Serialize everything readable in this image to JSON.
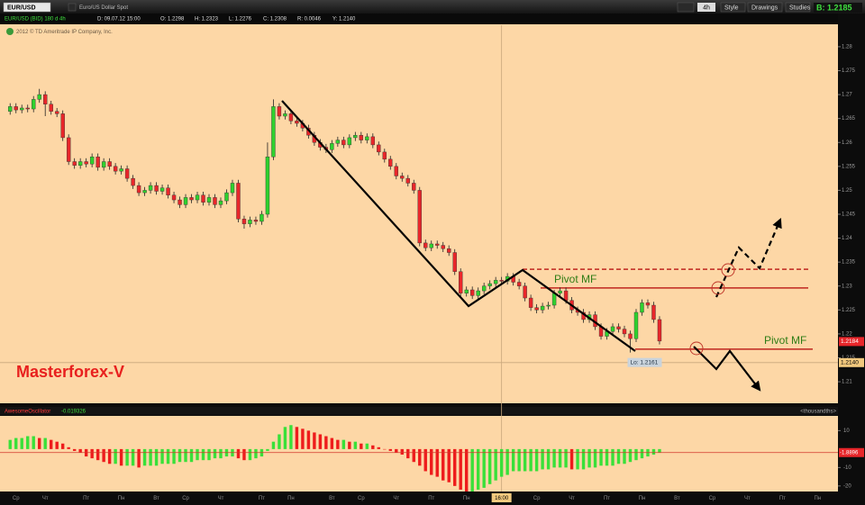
{
  "toolbar": {
    "symbol": "EUR/USD",
    "description": "Euro/US Dollar Spot",
    "aggregation": "4h",
    "buttons": [
      "Style",
      "Drawings",
      "Studies"
    ],
    "bid": "B: 1.2185"
  },
  "info_line": [
    "EUR/USD (BID) 180 d 4h",
    "D: 09.07.12 15:00",
    "O: 1.2298",
    "H: 1.2323",
    "L: 1.2276",
    "C: 1.2308",
    "R: 0.0046",
    "Y: 1.2140"
  ],
  "copyright": "2012 © TD Ameritrade IP Company, Inc.",
  "chart_data": [
    {
      "type": "candlestick",
      "annotation_text": "Masterforex-V",
      "low_label": "Lo: 1.2161",
      "up_color": "#2ed12e",
      "down_color": "#e8262a",
      "categories": [
        null,
        "Ср",
        null,
        null,
        null,
        null,
        "Чт",
        null,
        null,
        null,
        null,
        null,
        null,
        "Пт",
        null,
        null,
        null,
        null,
        null,
        "Пн",
        null,
        null,
        null,
        null,
        null,
        "Вт",
        null,
        null,
        null,
        null,
        "Ср",
        null,
        null,
        null,
        null,
        null,
        "Чт",
        null,
        null,
        null,
        null,
        null,
        null,
        "Пт",
        null,
        null,
        null,
        null,
        "Пн",
        null,
        null,
        null,
        null,
        null,
        null,
        "Вт",
        null,
        null,
        null,
        null,
        "Ср",
        null,
        null,
        null,
        null,
        null,
        "Чт",
        null,
        null,
        null,
        null,
        null,
        "Пт",
        null,
        null,
        null,
        null,
        null,
        "Пн",
        null,
        null,
        null,
        null,
        null,
        "16:00",
        null,
        null,
        null,
        null,
        null,
        "Ср",
        null,
        null,
        null,
        null,
        null,
        "Чт",
        null,
        null,
        null,
        null,
        null,
        "Пт",
        null,
        null,
        null,
        null,
        null,
        "Пн",
        null,
        null,
        null,
        null,
        null,
        "Вт",
        null,
        null,
        null,
        null,
        null,
        "Ср",
        null,
        null,
        null,
        null,
        null,
        "Чт",
        null,
        null,
        null,
        null,
        null,
        "Пт",
        null,
        null,
        null,
        null,
        null,
        "Пн",
        null,
        null,
        null
      ],
      "open": [
        1.2665,
        1.2675,
        1.2668,
        1.2672,
        1.267,
        1.269,
        1.27,
        1.268,
        1.2665,
        1.266,
        1.261,
        1.256,
        1.2552,
        1.256,
        1.2555,
        1.257,
        1.2548,
        1.256,
        1.255,
        1.254,
        1.2545,
        1.2525,
        1.251,
        1.2495,
        1.25,
        1.251,
        1.2498,
        1.2505,
        1.249,
        1.248,
        1.247,
        1.2485,
        1.248,
        1.249,
        1.2475,
        1.2485,
        1.247,
        1.2478,
        1.2495,
        1.2515,
        1.244,
        1.243,
        1.2438,
        1.2435,
        1.245,
        1.257,
        1.2675,
        1.2655,
        1.266,
        1.2645,
        1.264,
        1.263,
        1.2615,
        1.26,
        1.259,
        1.2585,
        1.2598,
        1.2605,
        1.2595,
        1.261,
        1.2615,
        1.2605,
        1.2612,
        1.2595,
        1.258,
        1.2565,
        1.255,
        1.253,
        1.2525,
        1.2515,
        1.25,
        1.239,
        1.238,
        1.2388,
        1.2385,
        1.2378,
        1.237,
        1.233,
        1.2285,
        1.2292,
        1.228,
        1.229,
        1.23,
        1.2305,
        1.2312,
        1.231,
        1.232,
        1.2308,
        1.23,
        1.2275,
        1.2255,
        1.225,
        1.2258,
        1.226,
        1.2285,
        1.229,
        1.227,
        1.225,
        1.2245,
        1.223,
        1.224,
        1.2215,
        1.2195,
        1.2205,
        1.2215,
        1.221,
        1.22,
        1.219,
        1.2245,
        1.2265,
        1.226,
        1.223,
        null,
        null,
        null,
        null,
        null,
        null,
        null,
        null,
        null,
        null,
        null,
        null,
        null,
        null,
        null,
        null,
        null,
        null,
        null,
        null,
        null,
        null,
        null,
        null,
        null,
        null,
        null,
        null,
        null,
        null
      ],
      "high": [
        1.2682,
        1.2682,
        1.2679,
        1.2679,
        1.2697,
        1.2712,
        1.2707,
        1.2687,
        1.2672,
        1.2667,
        1.2617,
        1.2567,
        1.2567,
        1.2567,
        1.2577,
        1.2577,
        1.2567,
        1.2567,
        1.2557,
        1.2552,
        1.2552,
        1.2532,
        1.2517,
        1.2507,
        1.2517,
        1.2517,
        1.2512,
        1.2512,
        1.2497,
        1.2487,
        1.2492,
        1.2492,
        1.2497,
        1.2497,
        1.2492,
        1.2492,
        1.2485,
        1.2502,
        1.2522,
        1.2522,
        1.2447,
        1.2445,
        1.2445,
        1.2457,
        1.26,
        1.269,
        1.2682,
        1.2667,
        1.2667,
        1.2652,
        1.2647,
        1.2637,
        1.2622,
        1.2607,
        1.2597,
        1.2605,
        1.2612,
        1.2612,
        1.2617,
        1.2622,
        1.2622,
        1.2619,
        1.2619,
        1.2602,
        1.2587,
        1.2572,
        1.2557,
        1.2537,
        1.2532,
        1.2522,
        1.2507,
        1.2397,
        1.2395,
        1.2395,
        1.2392,
        1.2385,
        1.2377,
        1.2337,
        1.2299,
        1.2299,
        1.2297,
        1.2307,
        1.2312,
        1.2319,
        1.2319,
        1.2327,
        1.2327,
        1.2315,
        1.2307,
        1.2282,
        1.2262,
        1.2265,
        1.2267,
        1.2292,
        1.2297,
        1.2297,
        1.2277,
        1.2257,
        1.2252,
        1.2247,
        1.2247,
        1.2222,
        1.2212,
        1.2222,
        1.2222,
        1.2217,
        1.2207,
        1.2252,
        1.2272,
        1.2272,
        1.2267,
        1.2237,
        null,
        null,
        null,
        null,
        null,
        null,
        null,
        null,
        null,
        null,
        null,
        null,
        null,
        null,
        null,
        null,
        null,
        null,
        null,
        null,
        null,
        null,
        null,
        null,
        null,
        null,
        null,
        null,
        null,
        null
      ],
      "low": [
        1.2658,
        1.2661,
        1.2661,
        1.2663,
        1.2663,
        1.2683,
        1.2655,
        1.2658,
        1.2653,
        1.2603,
        1.2553,
        1.2545,
        1.2545,
        1.2548,
        1.2548,
        1.2541,
        1.2541,
        1.2543,
        1.2533,
        1.2533,
        1.2518,
        1.2503,
        1.2488,
        1.2488,
        1.2493,
        1.2491,
        1.2491,
        1.2483,
        1.2473,
        1.2463,
        1.2463,
        1.2473,
        1.2473,
        1.2468,
        1.2468,
        1.2463,
        1.2463,
        1.2471,
        1.2488,
        1.2433,
        1.242,
        1.2423,
        1.2428,
        1.2428,
        1.2443,
        1.2563,
        1.2648,
        1.2648,
        1.2638,
        1.2633,
        1.2623,
        1.2608,
        1.2593,
        1.2583,
        1.2578,
        1.2578,
        1.2591,
        1.2588,
        1.2588,
        1.2603,
        1.2598,
        1.2598,
        1.2588,
        1.2573,
        1.2558,
        1.2543,
        1.2523,
        1.2518,
        1.2508,
        1.2493,
        1.2383,
        1.2373,
        1.2373,
        1.2378,
        1.2371,
        1.2363,
        1.2323,
        1.2278,
        1.2278,
        1.2273,
        1.2273,
        1.2283,
        1.2293,
        1.2298,
        1.2303,
        1.2303,
        1.2301,
        1.2293,
        1.2268,
        1.2248,
        1.2243,
        1.2243,
        1.2251,
        1.2253,
        1.2278,
        1.2263,
        1.2243,
        1.2238,
        1.2223,
        1.2223,
        1.2208,
        1.2188,
        1.2188,
        1.2198,
        1.2203,
        1.2193,
        1.2161,
        1.2183,
        1.2238,
        1.2253,
        1.2223,
        1.2178,
        null,
        null,
        null,
        null,
        null,
        null,
        null,
        null,
        null,
        null,
        null,
        null,
        null,
        null,
        null,
        null,
        null,
        null,
        null,
        null,
        null,
        null,
        null,
        null,
        null,
        null,
        null,
        null,
        null,
        null
      ],
      "close": [
        1.2675,
        1.2668,
        1.2672,
        1.267,
        1.269,
        1.27,
        1.268,
        1.2665,
        1.266,
        1.261,
        1.256,
        1.2552,
        1.256,
        1.2555,
        1.257,
        1.2548,
        1.256,
        1.255,
        1.254,
        1.2545,
        1.2525,
        1.251,
        1.2495,
        1.25,
        1.251,
        1.2498,
        1.2505,
        1.249,
        1.248,
        1.247,
        1.2485,
        1.248,
        1.249,
        1.2475,
        1.2485,
        1.247,
        1.2478,
        1.2495,
        1.2515,
        1.244,
        1.243,
        1.2438,
        1.2435,
        1.245,
        1.257,
        1.2675,
        1.2655,
        1.266,
        1.2645,
        1.264,
        1.263,
        1.2615,
        1.26,
        1.259,
        1.2585,
        1.2598,
        1.2605,
        1.2595,
        1.261,
        1.2615,
        1.2605,
        1.2612,
        1.2595,
        1.258,
        1.2565,
        1.255,
        1.253,
        1.2525,
        1.2515,
        1.25,
        1.239,
        1.238,
        1.2388,
        1.2385,
        1.2378,
        1.237,
        1.233,
        1.2285,
        1.2292,
        1.228,
        1.229,
        1.23,
        1.2305,
        1.2312,
        1.231,
        1.232,
        1.2308,
        1.23,
        1.2275,
        1.2255,
        1.225,
        1.2258,
        1.226,
        1.2285,
        1.229,
        1.227,
        1.225,
        1.2245,
        1.223,
        1.224,
        1.2215,
        1.2195,
        1.2205,
        1.2215,
        1.221,
        1.22,
        1.219,
        1.2245,
        1.2265,
        1.226,
        1.223,
        1.2185,
        null,
        null,
        null,
        null,
        null,
        null,
        null,
        null,
        null,
        null,
        null,
        null,
        null,
        null,
        null,
        null,
        null,
        null,
        null,
        null,
        null,
        null,
        null,
        null,
        null,
        null,
        null,
        null,
        null,
        null
      ],
      "ylim": [
        1.2055,
        1.2845
      ],
      "yticks": [
        1.21,
        1.215,
        1.22,
        1.225,
        1.23,
        1.235,
        1.24,
        1.245,
        1.25,
        1.255,
        1.26,
        1.265,
        1.27,
        1.275,
        1.28
      ],
      "last_price": 1.2184,
      "crosshair": {
        "x_index": 84,
        "y": {
          "value": 1.214,
          "label": "1.2140"
        }
      },
      "pivot_lines": [
        {
          "label": "Pivot MF",
          "value": 1.2296
        },
        {
          "label": "Pivot MF",
          "value": 1.2168
        }
      ],
      "dashed_level": 1.2335
    },
    {
      "type": "bar",
      "name": "AwesomeOscillator",
      "value_readout": "-0.019326",
      "units_label": "<thousandths>",
      "up_color": "#39e039",
      "down_color": "#ee1c1c",
      "values": [
        5,
        6,
        6,
        7,
        7,
        6,
        6,
        5,
        4,
        3,
        1,
        -1,
        -2,
        -4,
        -5,
        -6,
        -7,
        -8,
        -8,
        -9,
        -9,
        -9,
        -10,
        -9,
        -9,
        -9,
        -8,
        -8,
        -8,
        -7,
        -7,
        -7,
        -6,
        -6,
        -6,
        -5,
        -5,
        -4,
        -4,
        -5,
        -6,
        -6,
        -5,
        -4,
        -1,
        4,
        8,
        12,
        13,
        12,
        11,
        10,
        9,
        8,
        7,
        6,
        5,
        5,
        4,
        4,
        3,
        3,
        2,
        1,
        0,
        -1,
        -2,
        -3,
        -5,
        -7,
        -9,
        -12,
        -14,
        -15,
        -17,
        -18,
        -20,
        -22,
        -23,
        -23,
        -22,
        -21,
        -19,
        -17,
        -15,
        -14,
        -12,
        -12,
        -12,
        -12,
        -12,
        -11,
        -11,
        -10,
        -10,
        -10,
        -11,
        -11,
        -11,
        -10,
        -10,
        -9,
        -9,
        -9,
        -8,
        -8,
        -7,
        -6,
        -5,
        -4,
        -3,
        -1.8896,
        null,
        null,
        null,
        null,
        null,
        null,
        null,
        null,
        null,
        null,
        null,
        null,
        null,
        null,
        null,
        null,
        null,
        null,
        null,
        null,
        null,
        null,
        null,
        null,
        null,
        null,
        null,
        null,
        null,
        null
      ],
      "ylim": [
        -23,
        18
      ],
      "yticks": [
        10,
        -10,
        -20
      ]
    }
  ]
}
